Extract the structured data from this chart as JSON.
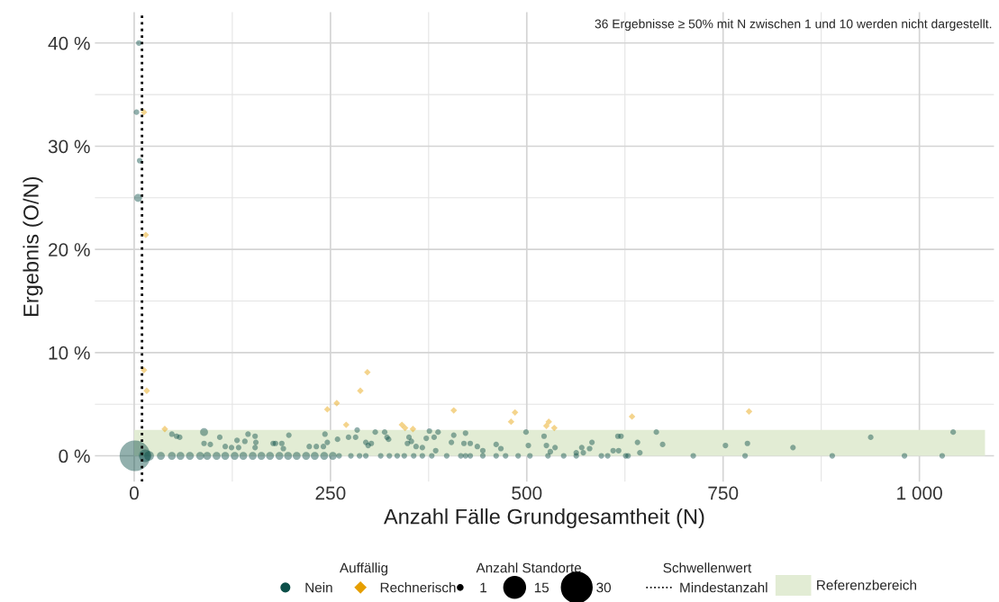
{
  "chart_data": {
    "type": "bubble",
    "xlabel": "Anzahl Fälle Grundgesamtheit (N)",
    "ylabel": "Ergebnis (O/N)",
    "legend_title": "Auffällig",
    "annotations": [
      "36 Ergebnisse ≥ 50% mit N zwischen 1 und 10 werden nicht dargestellt.",
      "Anzahl Standorte",
      "Schwellenwert"
    ],
    "xlim": [
      -50,
      1095
    ],
    "ylim": [
      -2.5,
      43
    ],
    "xticks": [
      0,
      250,
      500,
      750,
      {
        "value": 1000,
        "label": "1 000"
      }
    ],
    "yticks": [
      {
        "value": 0,
        "label": "0 %"
      },
      {
        "value": 10,
        "label": "10 %"
      },
      {
        "value": 20,
        "label": "20 %"
      },
      {
        "value": 30,
        "label": "30 %"
      },
      {
        "value": 40,
        "label": "40 %"
      }
    ],
    "grid": true,
    "legend": "bottom",
    "size_legend": [
      1,
      15,
      30
    ],
    "ref_lines": [
      {
        "axis": "x",
        "value": 10,
        "label": "Mindestanzahl",
        "color": "#000000",
        "line_style": "dotted"
      }
    ],
    "bands": [
      {
        "axis": "y",
        "from": 0,
        "to": 2.5,
        "label": "Referenzbereich",
        "color": "#e2ecd4"
      }
    ],
    "series": [
      {
        "name": "Nein",
        "color": "#0d4f49",
        "marker": "circle",
        "x": [
          6,
          3,
          7,
          5,
          1,
          48,
          54,
          58,
          89,
          89,
          97,
          109,
          116,
          124,
          131,
          133,
          141,
          145,
          154,
          155,
          154,
          177,
          180,
          188,
          190,
          197,
          223,
          232,
          241,
          243,
          246,
          259,
          273,
          282,
          284,
          295,
          298,
          302,
          307,
          319,
          322,
          324,
          348,
          350,
          353,
          359,
          367,
          372,
          376,
          382,
          387,
          384,
          404,
          407,
          420,
          422,
          428,
          437,
          444,
          461,
          467,
          499,
          502,
          522,
          525,
          536,
          530,
          563,
          570,
          572,
          580,
          583,
          610,
          617,
          616,
          620,
          641,
          644,
          665,
          673,
          753,
          781,
          839,
          938,
          1043,
          14,
          19,
          34,
          48,
          59,
          71,
          84,
          93,
          105,
          116,
          128,
          139,
          151,
          162,
          173,
          185,
          196,
          207,
          219,
          230,
          242,
          253,
          261,
          276,
          287,
          295,
          314,
          325,
          335,
          344,
          356,
          367,
          379,
          398,
          416,
          422,
          428,
          444,
          461,
          473,
          489,
          504,
          527,
          547,
          563,
          595,
          603,
          626,
          629,
          712,
          778,
          889,
          981,
          1029
        ],
        "values": [
          40,
          33.3,
          28.6,
          25,
          0,
          2.1,
          1.9,
          1.8,
          2.3,
          1.2,
          1.1,
          1.8,
          0.9,
          0.8,
          1.5,
          0.8,
          1.4,
          2.1,
          1.9,
          1.3,
          0.8,
          1.2,
          1.2,
          1.2,
          0.7,
          2.0,
          0.9,
          0.9,
          0.9,
          2.1,
          1.3,
          1.6,
          1.8,
          1.8,
          2.5,
          1.3,
          1.0,
          1.2,
          2.3,
          2.3,
          1.8,
          1.6,
          1.2,
          1.8,
          1.4,
          0.9,
          0.8,
          1.7,
          2.4,
          1.8,
          2.3,
          0.5,
          1.3,
          2.0,
          1.2,
          2.2,
          1.2,
          0.9,
          0.5,
          1.1,
          0.7,
          2.3,
          1.0,
          1.9,
          1.0,
          0.8,
          0.4,
          0.3,
          0.8,
          0.3,
          0.7,
          1.3,
          0.5,
          0.5,
          1.9,
          1.9,
          1.3,
          0.3,
          2.3,
          1.1,
          1.0,
          1.2,
          0.8,
          1.8,
          2.3,
          0,
          0,
          0,
          0,
          0,
          0,
          0,
          0,
          0,
          0,
          0,
          0,
          0,
          0,
          0,
          0,
          0,
          0,
          0,
          0,
          0,
          0,
          0,
          0,
          0,
          0,
          0,
          0,
          0,
          0,
          0,
          0,
          0,
          0,
          0,
          0,
          0,
          0,
          0,
          0,
          0,
          0,
          0,
          0,
          0,
          0,
          0,
          0,
          0,
          0,
          0,
          0,
          0,
          0
        ],
        "sizes": [
          1,
          1,
          1,
          2,
          30,
          1,
          1,
          1,
          2,
          1,
          1,
          1,
          1,
          1,
          1,
          1,
          1,
          1,
          1,
          1,
          1,
          1,
          1,
          1,
          1,
          1,
          1,
          1,
          1,
          1,
          1,
          1,
          1,
          1,
          1,
          1,
          1,
          1,
          1,
          1,
          1,
          1,
          1,
          1,
          1,
          1,
          1,
          1,
          1,
          1,
          1,
          1,
          1,
          1,
          1,
          1,
          1,
          1,
          1,
          1,
          1,
          1,
          1,
          1,
          1,
          1,
          1,
          1,
          1,
          1,
          1,
          1,
          1,
          1,
          1,
          1,
          1,
          1,
          1,
          1,
          1,
          1,
          1,
          1,
          1,
          5,
          3,
          2,
          2,
          2,
          2,
          2,
          2,
          2,
          2,
          2,
          2,
          2,
          2,
          2,
          2,
          2,
          2,
          2,
          2,
          2,
          2,
          1,
          1,
          1,
          1,
          1,
          1,
          1,
          1,
          1,
          1,
          1,
          1,
          1,
          1,
          1,
          1,
          1,
          1,
          1,
          1,
          1,
          1,
          1,
          1,
          1,
          1,
          1,
          1,
          1,
          1,
          1,
          1
        ]
      },
      {
        "name": "Rechnerisch",
        "color": "#e69f00",
        "marker": "diamond",
        "x": [
          12.5,
          14.8,
          12.5,
          16,
          39,
          246,
          258,
          270,
          288,
          297,
          341,
          345,
          355,
          407,
          480,
          485,
          525,
          528,
          535,
          634,
          783
        ],
        "values": [
          33.3,
          21.4,
          8.3,
          6.3,
          2.6,
          4.5,
          5.1,
          3.0,
          6.3,
          8.1,
          3.0,
          2.7,
          2.6,
          4.4,
          3.3,
          4.2,
          2.9,
          3.3,
          2.7,
          3.8,
          4.3
        ],
        "sizes": [
          1,
          1,
          1,
          1,
          1,
          1,
          1,
          1,
          1,
          1,
          1,
          1,
          1,
          1,
          1,
          1,
          1,
          1,
          1,
          1,
          1
        ]
      }
    ]
  }
}
